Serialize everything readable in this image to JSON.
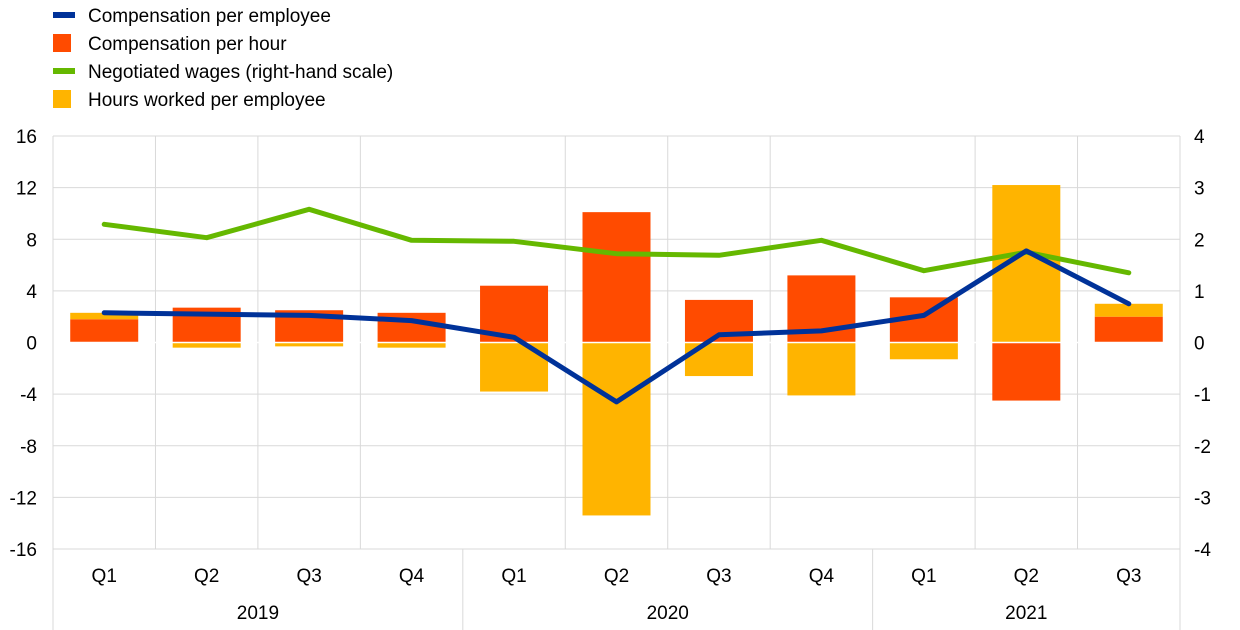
{
  "chart_data": {
    "type": "bar",
    "title": "",
    "categories": [
      "Q1",
      "Q2",
      "Q3",
      "Q4",
      "Q1",
      "Q2",
      "Q3",
      "Q4",
      "Q1",
      "Q2",
      "Q3"
    ],
    "years": [
      {
        "label": "2019",
        "quarters": 4
      },
      {
        "label": "2020",
        "quarters": 4
      },
      {
        "label": "2021",
        "quarters": 3
      }
    ],
    "legend": [
      {
        "name": "Compensation per employee",
        "kind": "line",
        "color": "#003299"
      },
      {
        "name": "Compensation per hour",
        "kind": "bar",
        "color": "#ff4b00"
      },
      {
        "name": "Negotiated wages (right-hand scale)",
        "kind": "line",
        "color": "#65b800"
      },
      {
        "name": "Hours worked per employee",
        "kind": "bar",
        "color": "#ffb400"
      }
    ],
    "series": [
      {
        "name": "Compensation per hour",
        "type": "bar",
        "axis": "left",
        "color": "#ff4b00",
        "values": [
          1.8,
          2.7,
          2.5,
          2.3,
          4.4,
          10.1,
          3.3,
          5.2,
          3.5,
          -4.5,
          2.0
        ]
      },
      {
        "name": "Hours worked per employee",
        "type": "bar",
        "axis": "left",
        "color": "#ffb400",
        "values": [
          0.5,
          -0.4,
          -0.3,
          -0.4,
          -3.8,
          -13.4,
          -2.6,
          -4.1,
          -1.3,
          12.2,
          1.0
        ]
      },
      {
        "name": "Compensation per employee",
        "type": "line",
        "axis": "left",
        "color": "#003299",
        "values": [
          2.3,
          2.2,
          2.1,
          1.7,
          0.4,
          -4.6,
          0.6,
          0.9,
          2.1,
          7.1,
          3.0
        ]
      },
      {
        "name": "Negotiated wages (right-hand scale)",
        "type": "line",
        "axis": "right",
        "color": "#65b800",
        "values": [
          2.29,
          2.03,
          2.58,
          1.98,
          1.96,
          1.72,
          1.69,
          1.98,
          1.39,
          1.75,
          1.35
        ]
      }
    ],
    "y_left": {
      "min": -16,
      "max": 16,
      "ticks": [
        16,
        12,
        8,
        4,
        0,
        -4,
        -8,
        -12,
        -16
      ]
    },
    "y_right": {
      "min": -4,
      "max": 4,
      "ticks": [
        4,
        3,
        2,
        1,
        0,
        -1,
        -2,
        -3,
        -4
      ]
    },
    "grid": true,
    "legend_position": "top-left"
  }
}
